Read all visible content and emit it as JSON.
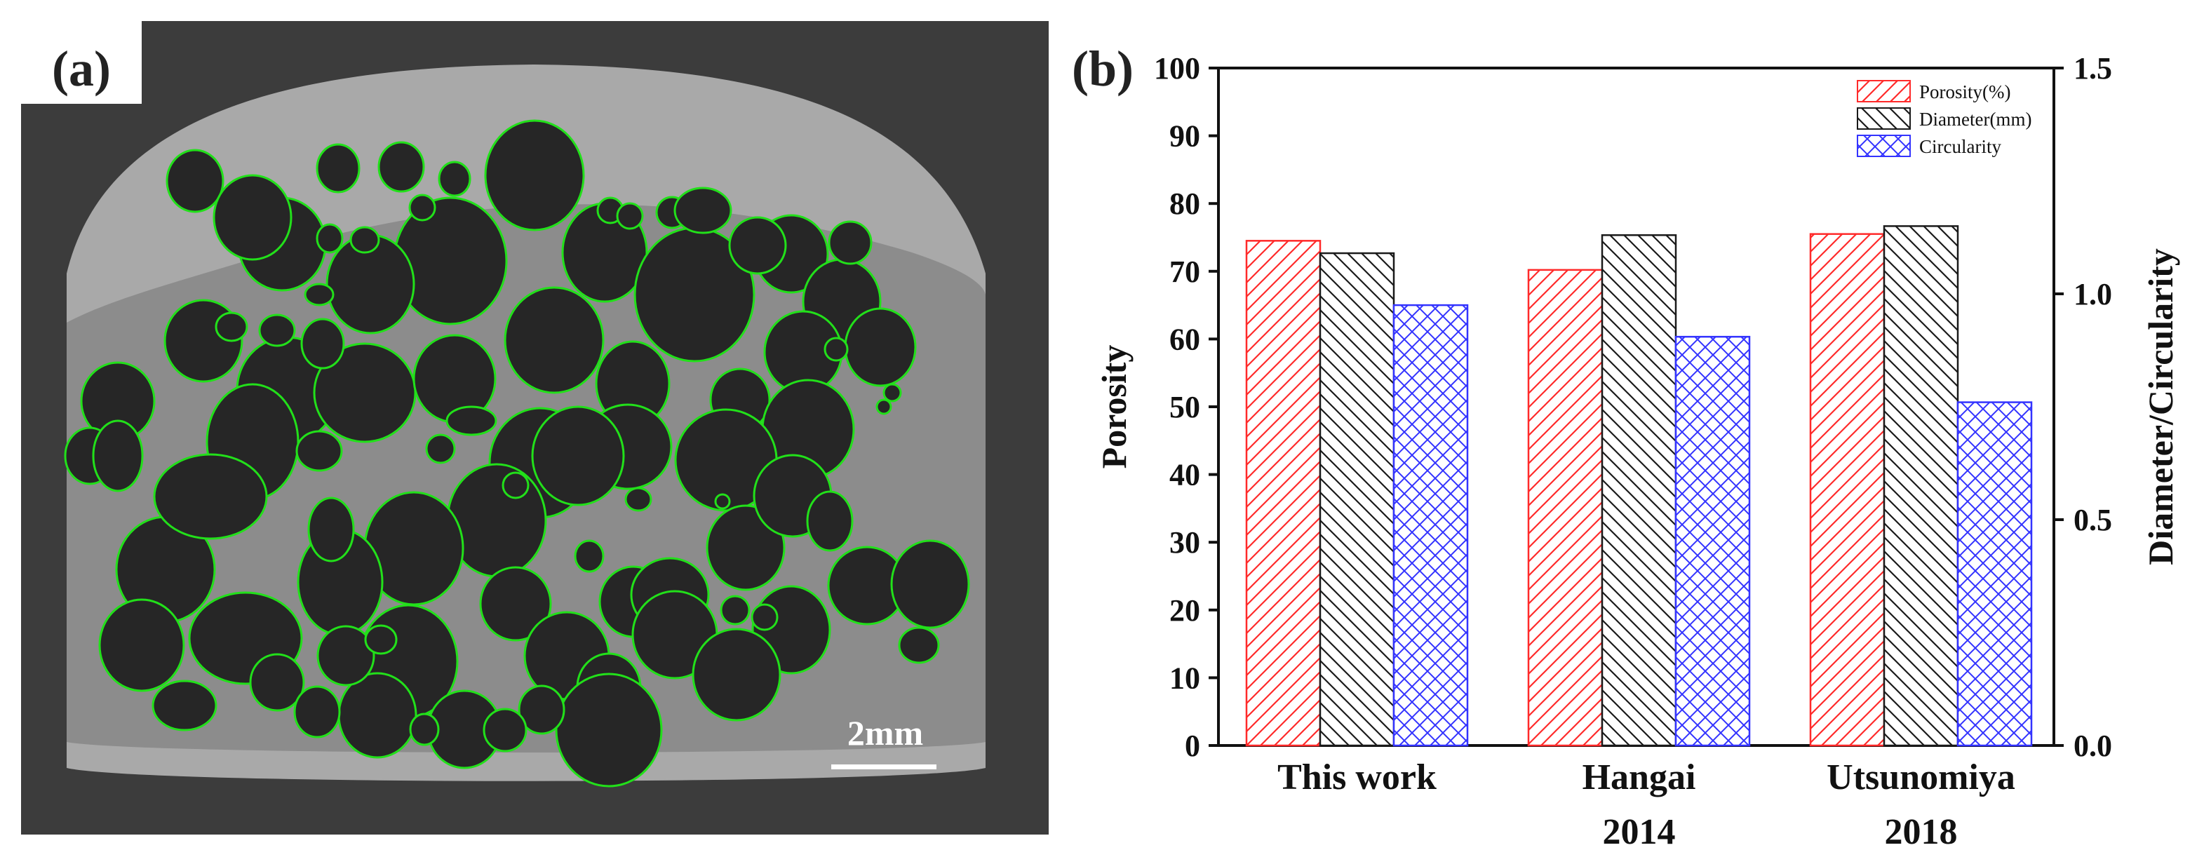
{
  "panel_a": {
    "label": "(a)",
    "scale_bar_label": "2mm",
    "colors": {
      "background": "#3c3c3c",
      "specimen": "#a9a9a9",
      "foam": "#8a8a8a",
      "pore": "#262626",
      "pore_outline": "#22e01a",
      "scale_bar": "#ffffff"
    }
  },
  "panel_b": {
    "label": "(b)",
    "chart_data": {
      "type": "bar",
      "categories": [
        [
          "This work"
        ],
        [
          "Hangai",
          "2014"
        ],
        [
          "Utsunomiya",
          "2018"
        ]
      ],
      "left_axis": {
        "label": "Porosity",
        "range": [
          0,
          100
        ],
        "ticks": [
          "0",
          "10",
          "20",
          "30",
          "40",
          "50",
          "60",
          "70",
          "80",
          "90",
          "100"
        ]
      },
      "right_axis": {
        "label": "Diameter/Circularity",
        "range": [
          0,
          1.5
        ],
        "ticks": [
          "0.0",
          "0.5",
          "1.0",
          "1.5"
        ]
      },
      "series": [
        {
          "name": "Porosity(%)",
          "axis": "left",
          "color": "#ff2a2a",
          "hatch": "diag-right",
          "values": [
            74.5,
            70.2,
            75.5
          ]
        },
        {
          "name": "Diameter(mm)",
          "axis": "right",
          "color": "#1a1a1a",
          "hatch": "diag-left",
          "values": [
            1.09,
            1.13,
            1.15
          ]
        },
        {
          "name": "Circularity",
          "axis": "right",
          "color": "#3333ff",
          "hatch": "cross",
          "values": [
            0.975,
            0.905,
            0.76
          ]
        }
      ],
      "legend_position": "top-right",
      "grid": false
    }
  }
}
